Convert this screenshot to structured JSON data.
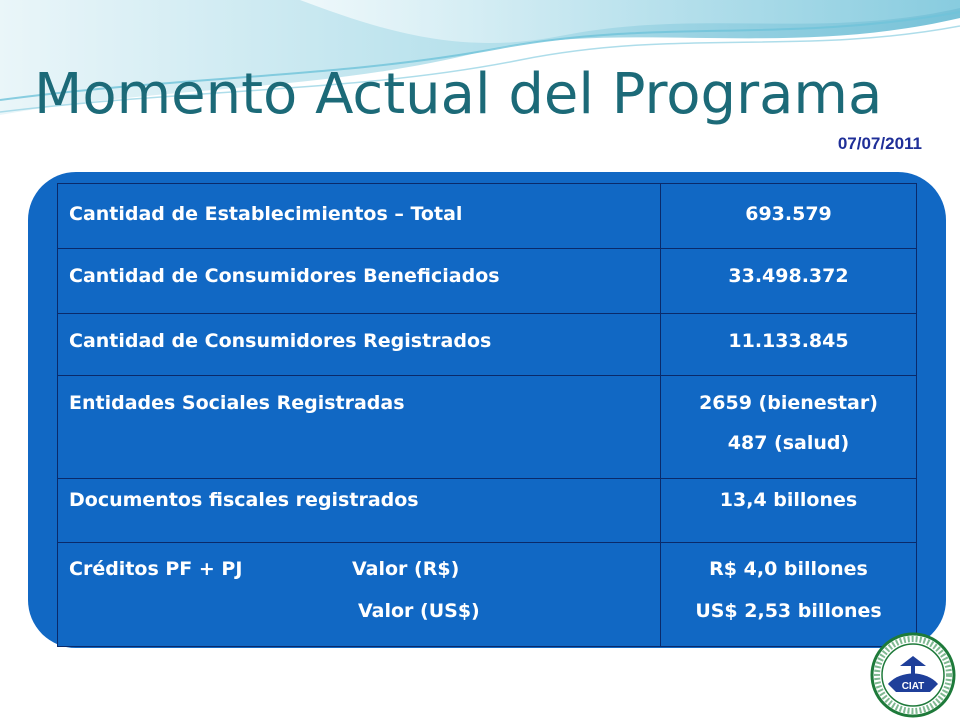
{
  "slide": {
    "title": "Momento Actual del Programa",
    "date": "07/07/2011"
  },
  "table": {
    "rows": [
      {
        "label": "Cantidad de Establecimientos – Total",
        "value": "693.579"
      },
      {
        "label": "Cantidad de Consumidores Beneficiados",
        "value": "33.498.372"
      },
      {
        "label": "Cantidad de Consumidores Registrados",
        "value": "11.133.845"
      },
      {
        "label": "Entidades Sociales Registradas",
        "value_lines": [
          "2659 (bienestar)",
          "487 (salud)"
        ]
      },
      {
        "label": "Documentos fiscales registrados",
        "value": "13,4 billones"
      },
      {
        "label": "Créditos PF + PJ",
        "sub_labels": [
          "Valor (R$)",
          "Valor (US$)"
        ],
        "value_lines": [
          "R$ 4,0 billones",
          "US$ 2,53 billones"
        ]
      }
    ]
  },
  "colors": {
    "title": "#1c6a78",
    "date": "#1f2f98",
    "panel": "#1168c4",
    "table_border": "#0a2a6a",
    "text": "#ffffff"
  },
  "logo": {
    "icon": "seal-logo",
    "text": "CIAT"
  }
}
